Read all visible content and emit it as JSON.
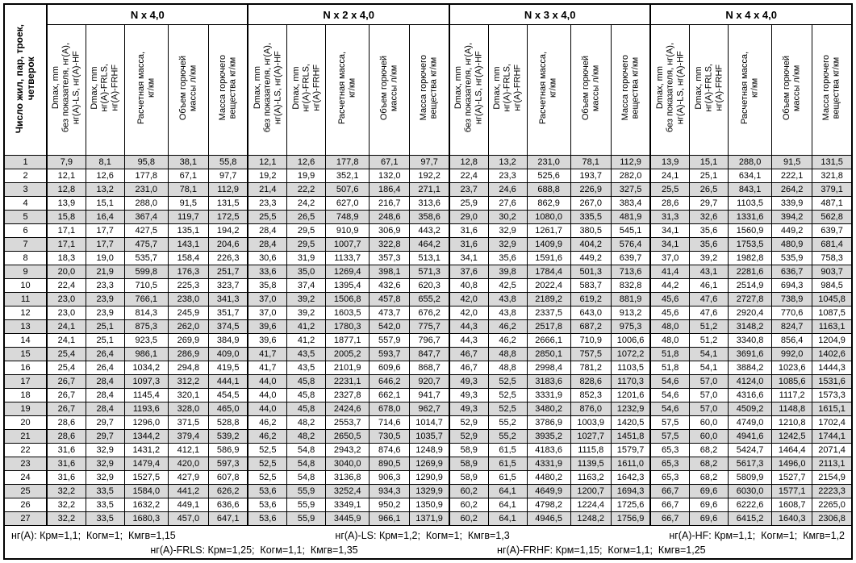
{
  "table": {
    "corner_header": "Число жил, пар, троек,\nчетверок",
    "groups": [
      {
        "label": "N x 4,0"
      },
      {
        "label": "N x 2 x 4,0"
      },
      {
        "label": "N x 3 x 4,0"
      },
      {
        "label": "N x 4 x 4,0"
      }
    ],
    "sub_headers": [
      "Dmax, mm\nбез показателя, нг(A),\nнг(A)-LS, нг(A)-HF",
      "Dmax, mm\nнг(A)-FRLS,\nнг(A)-FRHF",
      "Расчетная масса,\nкг/км",
      "Объем горючей\nмассы л/км",
      "Масса горючего\nвещества кг/км"
    ],
    "rows": [
      {
        "n": "1",
        "cells": [
          "7,9",
          "8,1",
          "95,8",
          "38,1",
          "55,8",
          "12,1",
          "12,6",
          "177,8",
          "67,1",
          "97,7",
          "12,8",
          "13,2",
          "231,0",
          "78,1",
          "112,9",
          "13,9",
          "15,1",
          "288,0",
          "91,5",
          "131,5"
        ]
      },
      {
        "n": "2",
        "cells": [
          "12,1",
          "12,6",
          "177,8",
          "67,1",
          "97,7",
          "19,2",
          "19,9",
          "352,1",
          "132,0",
          "192,2",
          "22,4",
          "23,3",
          "525,6",
          "193,7",
          "282,0",
          "24,1",
          "25,1",
          "634,1",
          "222,1",
          "321,8"
        ]
      },
      {
        "n": "3",
        "cells": [
          "12,8",
          "13,2",
          "231,0",
          "78,1",
          "112,9",
          "21,4",
          "22,2",
          "507,6",
          "186,4",
          "271,1",
          "23,7",
          "24,6",
          "688,8",
          "226,9",
          "327,5",
          "25,5",
          "26,5",
          "843,1",
          "264,2",
          "379,1"
        ]
      },
      {
        "n": "4",
        "cells": [
          "13,9",
          "15,1",
          "288,0",
          "91,5",
          "131,5",
          "23,3",
          "24,2",
          "627,0",
          "216,7",
          "313,6",
          "25,9",
          "27,6",
          "862,9",
          "267,0",
          "383,4",
          "28,6",
          "29,7",
          "1103,5",
          "339,9",
          "487,1"
        ]
      },
      {
        "n": "5",
        "cells": [
          "15,8",
          "16,4",
          "367,4",
          "119,7",
          "172,5",
          "25,5",
          "26,5",
          "748,9",
          "248,6",
          "358,6",
          "29,0",
          "30,2",
          "1080,0",
          "335,5",
          "481,9",
          "31,3",
          "32,6",
          "1331,6",
          "394,2",
          "562,8"
        ]
      },
      {
        "n": "6",
        "cells": [
          "17,1",
          "17,7",
          "427,5",
          "135,1",
          "194,2",
          "28,4",
          "29,5",
          "910,9",
          "306,9",
          "443,2",
          "31,6",
          "32,9",
          "1261,7",
          "380,5",
          "545,1",
          "34,1",
          "35,6",
          "1560,9",
          "449,2",
          "639,7"
        ]
      },
      {
        "n": "7",
        "cells": [
          "17,1",
          "17,7",
          "475,7",
          "143,1",
          "204,6",
          "28,4",
          "29,5",
          "1007,7",
          "322,8",
          "464,2",
          "31,6",
          "32,9",
          "1409,9",
          "404,2",
          "576,4",
          "34,1",
          "35,6",
          "1753,5",
          "480,9",
          "681,4"
        ]
      },
      {
        "n": "8",
        "cells": [
          "18,3",
          "19,0",
          "535,7",
          "158,4",
          "226,3",
          "30,6",
          "31,9",
          "1133,7",
          "357,3",
          "513,1",
          "34,1",
          "35,6",
          "1591,6",
          "449,2",
          "639,7",
          "37,0",
          "39,2",
          "1982,8",
          "535,9",
          "758,3"
        ]
      },
      {
        "n": "9",
        "cells": [
          "20,0",
          "21,9",
          "599,8",
          "176,3",
          "251,7",
          "33,6",
          "35,0",
          "1269,4",
          "398,1",
          "571,3",
          "37,6",
          "39,8",
          "1784,4",
          "501,3",
          "713,6",
          "41,4",
          "43,1",
          "2281,6",
          "636,7",
          "903,7"
        ]
      },
      {
        "n": "10",
        "cells": [
          "22,4",
          "23,3",
          "710,5",
          "225,3",
          "323,7",
          "35,8",
          "37,4",
          "1395,4",
          "432,6",
          "620,3",
          "40,8",
          "42,5",
          "2022,4",
          "583,7",
          "832,8",
          "44,2",
          "46,1",
          "2514,9",
          "694,3",
          "984,5"
        ]
      },
      {
        "n": "11",
        "cells": [
          "23,0",
          "23,9",
          "766,1",
          "238,0",
          "341,3",
          "37,0",
          "39,2",
          "1506,8",
          "457,8",
          "655,2",
          "42,0",
          "43,8",
          "2189,2",
          "619,2",
          "881,9",
          "45,6",
          "47,6",
          "2727,8",
          "738,9",
          "1045,8"
        ]
      },
      {
        "n": "12",
        "cells": [
          "23,0",
          "23,9",
          "814,3",
          "245,9",
          "351,7",
          "37,0",
          "39,2",
          "1603,5",
          "473,7",
          "676,2",
          "42,0",
          "43,8",
          "2337,5",
          "643,0",
          "913,2",
          "45,6",
          "47,6",
          "2920,4",
          "770,6",
          "1087,5"
        ]
      },
      {
        "n": "13",
        "cells": [
          "24,1",
          "25,1",
          "875,3",
          "262,0",
          "374,5",
          "39,6",
          "41,2",
          "1780,3",
          "542,0",
          "775,7",
          "44,3",
          "46,2",
          "2517,8",
          "687,2",
          "975,3",
          "48,0",
          "51,2",
          "3148,2",
          "824,7",
          "1163,1"
        ]
      },
      {
        "n": "14",
        "cells": [
          "24,1",
          "25,1",
          "923,5",
          "269,9",
          "384,9",
          "39,6",
          "41,2",
          "1877,1",
          "557,9",
          "796,7",
          "44,3",
          "46,2",
          "2666,1",
          "710,9",
          "1006,6",
          "48,0",
          "51,2",
          "3340,8",
          "856,4",
          "1204,9"
        ]
      },
      {
        "n": "15",
        "cells": [
          "25,4",
          "26,4",
          "986,1",
          "286,9",
          "409,0",
          "41,7",
          "43,5",
          "2005,2",
          "593,7",
          "847,7",
          "46,7",
          "48,8",
          "2850,1",
          "757,5",
          "1072,2",
          "51,8",
          "54,1",
          "3691,6",
          "992,0",
          "1402,6"
        ]
      },
      {
        "n": "16",
        "cells": [
          "25,4",
          "26,4",
          "1034,2",
          "294,8",
          "419,5",
          "41,7",
          "43,5",
          "2101,9",
          "609,6",
          "868,7",
          "46,7",
          "48,8",
          "2998,4",
          "781,2",
          "1103,5",
          "51,8",
          "54,1",
          "3884,2",
          "1023,6",
          "1444,3"
        ]
      },
      {
        "n": "17",
        "cells": [
          "26,7",
          "28,4",
          "1097,3",
          "312,2",
          "444,1",
          "44,0",
          "45,8",
          "2231,1",
          "646,2",
          "920,7",
          "49,3",
          "52,5",
          "3183,6",
          "828,6",
          "1170,3",
          "54,6",
          "57,0",
          "4124,0",
          "1085,6",
          "1531,6"
        ]
      },
      {
        "n": "18",
        "cells": [
          "26,7",
          "28,4",
          "1145,4",
          "320,1",
          "454,5",
          "44,0",
          "45,8",
          "2327,8",
          "662,1",
          "941,7",
          "49,3",
          "52,5",
          "3331,9",
          "852,3",
          "1201,6",
          "54,6",
          "57,0",
          "4316,6",
          "1117,2",
          "1573,3"
        ]
      },
      {
        "n": "19",
        "cells": [
          "26,7",
          "28,4",
          "1193,6",
          "328,0",
          "465,0",
          "44,0",
          "45,8",
          "2424,6",
          "678,0",
          "962,7",
          "49,3",
          "52,5",
          "3480,2",
          "876,0",
          "1232,9",
          "54,6",
          "57,0",
          "4509,2",
          "1148,8",
          "1615,1"
        ]
      },
      {
        "n": "20",
        "cells": [
          "28,6",
          "29,7",
          "1296,0",
          "371,5",
          "528,8",
          "46,2",
          "48,2",
          "2553,7",
          "714,6",
          "1014,7",
          "52,9",
          "55,2",
          "3786,9",
          "1003,9",
          "1420,5",
          "57,5",
          "60,0",
          "4749,0",
          "1210,8",
          "1702,4"
        ]
      },
      {
        "n": "21",
        "cells": [
          "28,6",
          "29,7",
          "1344,2",
          "379,4",
          "539,2",
          "46,2",
          "48,2",
          "2650,5",
          "730,5",
          "1035,7",
          "52,9",
          "55,2",
          "3935,2",
          "1027,7",
          "1451,8",
          "57,5",
          "60,0",
          "4941,6",
          "1242,5",
          "1744,1"
        ]
      },
      {
        "n": "22",
        "cells": [
          "31,6",
          "32,9",
          "1431,2",
          "412,1",
          "586,9",
          "52,5",
          "54,8",
          "2943,2",
          "874,6",
          "1248,9",
          "58,9",
          "61,5",
          "4183,6",
          "1115,8",
          "1579,7",
          "65,3",
          "68,2",
          "5424,7",
          "1464,4",
          "2071,4"
        ]
      },
      {
        "n": "23",
        "cells": [
          "31,6",
          "32,9",
          "1479,4",
          "420,0",
          "597,3",
          "52,5",
          "54,8",
          "3040,0",
          "890,5",
          "1269,9",
          "58,9",
          "61,5",
          "4331,9",
          "1139,5",
          "1611,0",
          "65,3",
          "68,2",
          "5617,3",
          "1496,0",
          "2113,1"
        ]
      },
      {
        "n": "24",
        "cells": [
          "31,6",
          "32,9",
          "1527,5",
          "427,9",
          "607,8",
          "52,5",
          "54,8",
          "3136,8",
          "906,3",
          "1290,9",
          "58,9",
          "61,5",
          "4480,2",
          "1163,2",
          "1642,3",
          "65,3",
          "68,2",
          "5809,9",
          "1527,7",
          "2154,9"
        ]
      },
      {
        "n": "25",
        "cells": [
          "32,2",
          "33,5",
          "1584,0",
          "441,2",
          "626,2",
          "53,6",
          "55,9",
          "3252,4",
          "934,3",
          "1329,9",
          "60,2",
          "64,1",
          "4649,9",
          "1200,7",
          "1694,3",
          "66,7",
          "69,6",
          "6030,0",
          "1577,1",
          "2223,3"
        ]
      },
      {
        "n": "26",
        "cells": [
          "32,2",
          "33,5",
          "1632,2",
          "449,1",
          "636,6",
          "53,6",
          "55,9",
          "3349,1",
          "950,2",
          "1350,9",
          "60,2",
          "64,1",
          "4798,2",
          "1224,4",
          "1725,6",
          "66,7",
          "69,6",
          "6222,6",
          "1608,7",
          "2265,0"
        ]
      },
      {
        "n": "27",
        "cells": [
          "32,2",
          "33,5",
          "1680,3",
          "457,0",
          "647,1",
          "53,6",
          "55,9",
          "3445,9",
          "966,1",
          "1371,9",
          "60,2",
          "64,1",
          "4946,5",
          "1248,2",
          "1756,9",
          "66,7",
          "69,6",
          "6415,2",
          "1640,3",
          "2306,8"
        ]
      }
    ]
  },
  "footer": {
    "line1": [
      "нг(A): Крм=1,1;  Когм=1;  Кмгв=1,15",
      "нг(A)-LS: Крм=1,2;  Когм=1;  Кмгв=1,3",
      "нг(A)-HF: Крм=1,1;  Когм=1;  Кмгв=1,2"
    ],
    "line2": [
      "нг(A)-FRLS: Крм=1,25;  Когм=1,1;  Кмгв=1,35",
      "нг(A)-FRHF: Крм=1,15;  Когм=1,1;  Кмгв=1,25"
    ]
  },
  "colors": {
    "stripe": "#d9d9d9",
    "border": "#000000",
    "background": "#ffffff"
  }
}
